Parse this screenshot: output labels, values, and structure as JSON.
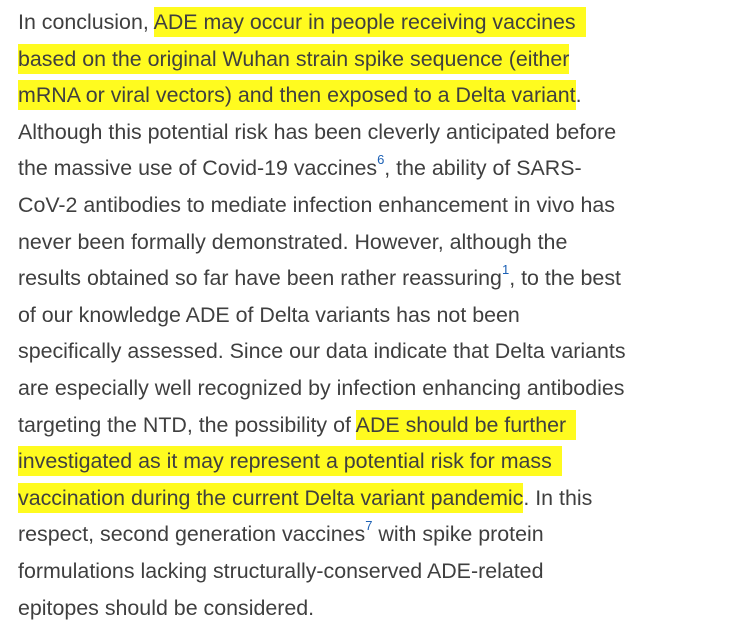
{
  "lines": [
    {
      "pre": "In conclusion, ",
      "hl": "ADE may occur in people receiving vaccines",
      "post": ""
    },
    {
      "pre": "",
      "hl": "based on the original Wuhan strain spike sequence (either",
      "post": ""
    },
    {
      "pre": "",
      "hl": "mRNA or viral vectors) and then exposed to a Delta variant",
      "post": "."
    },
    {
      "text": "Although this potential risk has been cleverly anticipated before"
    },
    {
      "pre": "the massive use of Covid-19 vaccines",
      "ref": "6",
      "post": ", the ability of SARS-"
    },
    {
      "text": "CoV-2 antibodies to mediate infection enhancement in vivo has"
    },
    {
      "text": "never been formally demonstrated. However, although the"
    },
    {
      "pre": "results obtained so far have been rather reassuring",
      "ref": "1",
      "post": ", to the best"
    },
    {
      "text": "of our knowledge ADE of Delta variants has not been"
    },
    {
      "text": "specifically assessed. Since our data indicate that Delta variants"
    },
    {
      "text": "are especially well recognized by infection enhancing antibodies"
    },
    {
      "pre": "targeting the NTD, the possibility of ",
      "hl": "ADE should be further",
      "post": ""
    },
    {
      "pre": "",
      "hl": "investigated as it may represent a potential risk for mass",
      "post": ""
    },
    {
      "pre": "",
      "hl": "vaccination during the current Delta variant pandemic",
      "post": ". In this"
    },
    {
      "pre": "respect, second generation vaccines",
      "ref": "7",
      "post": " with spike protein"
    },
    {
      "text": "formulations lacking structurally-conserved ADE-related"
    },
    {
      "text": "epitopes should be considered."
    }
  ],
  "colors": {
    "text": "#3f3f3f",
    "highlight": "#fffb1f",
    "citation": "#1a5fb4"
  }
}
